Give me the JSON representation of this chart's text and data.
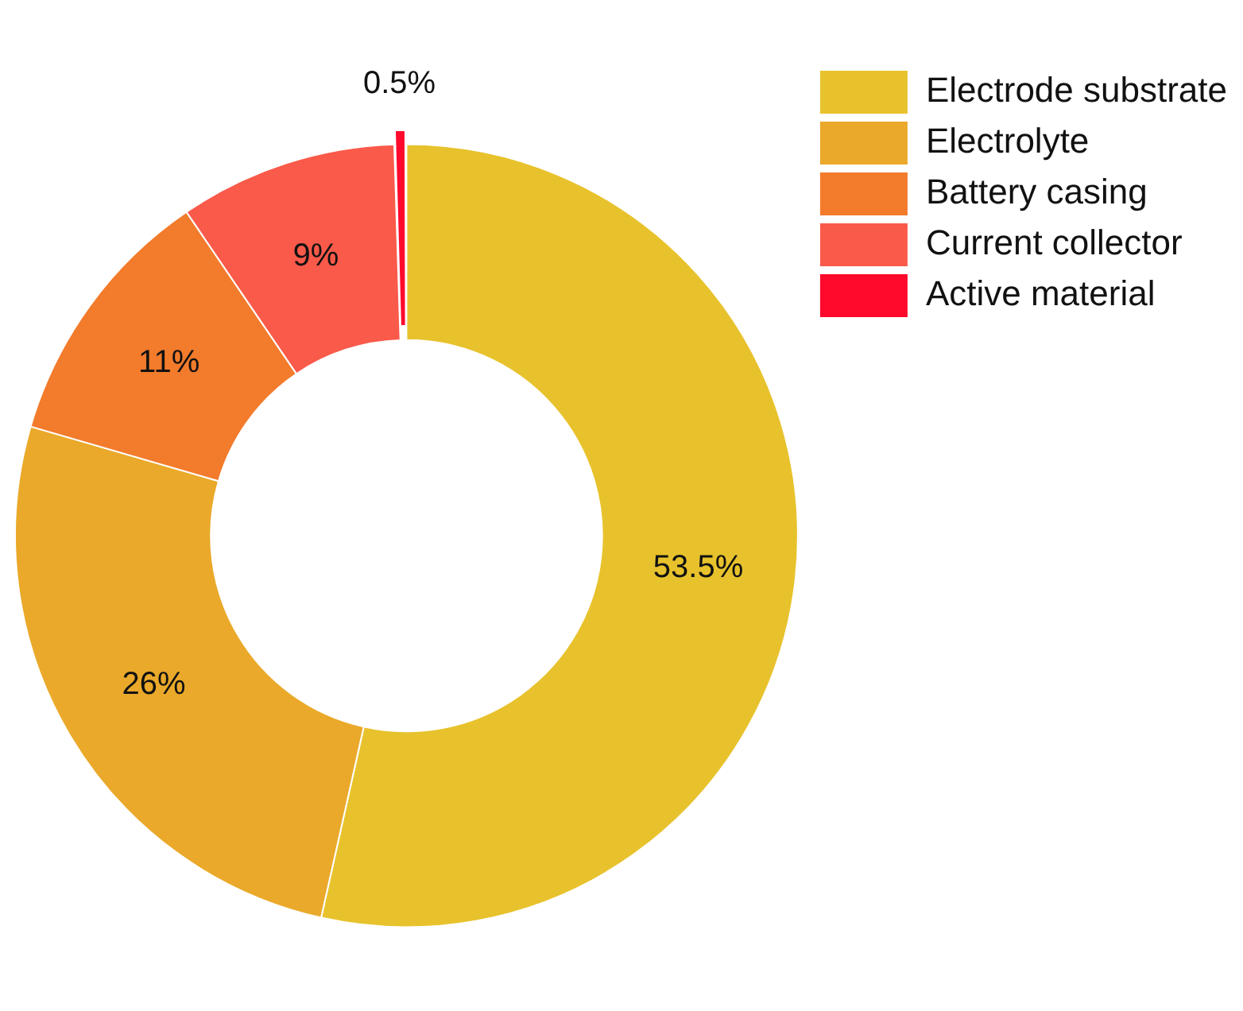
{
  "chart_data": {
    "type": "donut",
    "categories": [
      "Electrode substrate",
      "Electrolyte",
      "Battery casing",
      "Current collector",
      "Active material"
    ],
    "values": [
      53.5,
      26,
      11,
      9,
      0.5
    ],
    "colors": [
      "#e8c22c",
      "#eaa92a",
      "#f27b2c",
      "#fa5a4a",
      "#ff0a2c"
    ],
    "value_labels": [
      "53.5%",
      "26%",
      "11%",
      "9%",
      "0.5%"
    ],
    "legend": "top right"
  }
}
